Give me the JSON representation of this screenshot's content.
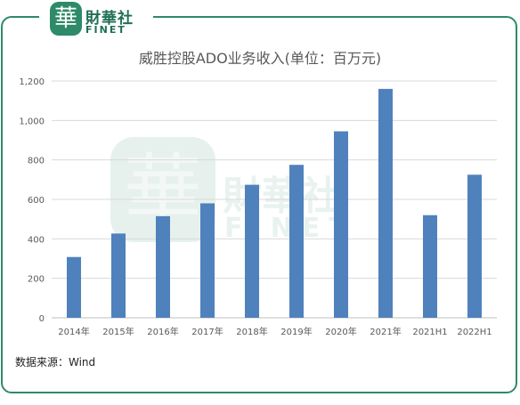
{
  "brand": {
    "logo_char": "華",
    "name_cn": "財華社",
    "name_en": "FINET"
  },
  "watermark": {
    "logo_char": "華",
    "name_cn": "財華社",
    "name_en": "FINET"
  },
  "source_note": "数据来源：Wind",
  "colors": {
    "bar": "#4f81bd",
    "frame": "#2e8a69",
    "gridline": "#d9d9d9",
    "text": "#595959"
  },
  "chart_data": {
    "type": "bar",
    "title": "威胜控股ADO业务收入(单位：百万元)",
    "xlabel": "",
    "ylabel": "",
    "categories": [
      "2014年",
      "2015年",
      "2016年",
      "2017年",
      "2018年",
      "2019年",
      "2020年",
      "2021年",
      "2021H1",
      "2022H1"
    ],
    "values": [
      308,
      427,
      515,
      580,
      674,
      775,
      945,
      1160,
      520,
      725
    ],
    "ylim": [
      0,
      1200
    ],
    "yticks": [
      "0",
      "200",
      "400",
      "600",
      "800",
      "1,000",
      "1,200"
    ],
    "grid": true,
    "legend": "none"
  }
}
